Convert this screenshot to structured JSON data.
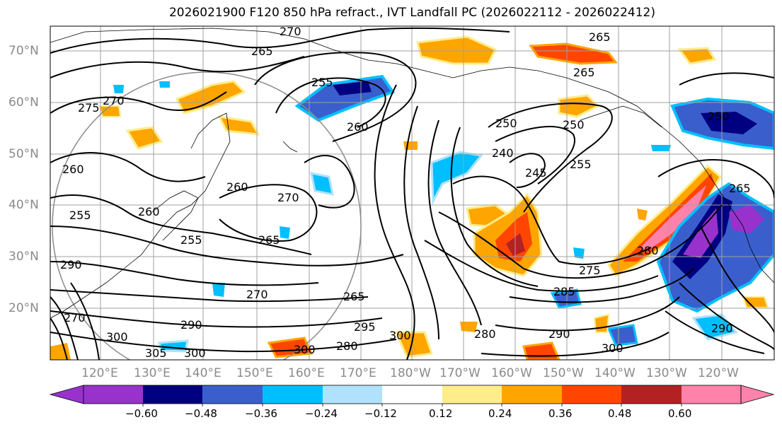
{
  "title": "2026021900 F120 850 hPa refract., IVT Landfall PC (2026022112 - 2026022412)",
  "lat_labels": [
    "70°N",
    "60°N",
    "50°N",
    "40°N",
    "30°N",
    "20°N"
  ],
  "lon_labels": [
    "120°E",
    "130°E",
    "140°E",
    "150°E",
    "160°E",
    "170°E",
    "180°W",
    "170°W",
    "160°W",
    "150°W",
    "140°W",
    "130°W",
    "120°W"
  ],
  "colorbar": {
    "colors": [
      "#9932cc",
      "#000080",
      "#3a5fcd",
      "#00bfff",
      "#b0e2ff",
      "#ffffff",
      "#ffec8b",
      "#ffa500",
      "#ff4500",
      "#b22222",
      "#ff82ab"
    ],
    "ticks": [
      "−0.60",
      "−0.48",
      "−0.36",
      "−0.24",
      "−0.12",
      "0.12",
      "0.24",
      "0.36",
      "0.48",
      "0.60"
    ]
  },
  "contour_labels": [
    "270",
    "265",
    "265",
    "265",
    "255",
    "260",
    "275",
    "270",
    "260",
    "250",
    "240",
    "245",
    "255",
    "260",
    "270",
    "255",
    "260",
    "265",
    "255",
    "265",
    "270",
    "250",
    "250",
    "275",
    "280",
    "285",
    "290",
    "300",
    "300",
    "290",
    "280",
    "300",
    "280",
    "295",
    "300",
    "305",
    "270",
    "290",
    "300",
    "290",
    "265"
  ]
}
